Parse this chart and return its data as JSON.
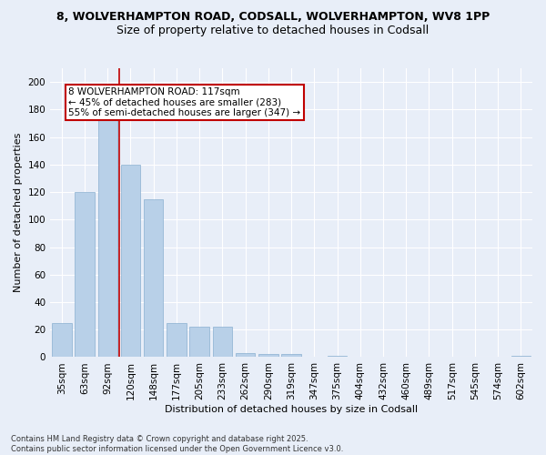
{
  "title_line1": "8, WOLVERHAMPTON ROAD, CODSALL, WOLVERHAMPTON, WV8 1PP",
  "title_line2": "Size of property relative to detached houses in Codsall",
  "xlabel": "Distribution of detached houses by size in Codsall",
  "ylabel": "Number of detached properties",
  "categories": [
    "35sqm",
    "63sqm",
    "92sqm",
    "120sqm",
    "148sqm",
    "177sqm",
    "205sqm",
    "233sqm",
    "262sqm",
    "290sqm",
    "319sqm",
    "347sqm",
    "375sqm",
    "404sqm",
    "432sqm",
    "460sqm",
    "489sqm",
    "517sqm",
    "545sqm",
    "574sqm",
    "602sqm"
  ],
  "values": [
    25,
    120,
    183,
    140,
    115,
    25,
    22,
    22,
    3,
    2,
    2,
    0,
    1,
    0,
    0,
    0,
    0,
    0,
    0,
    0,
    1
  ],
  "bar_color": "#b8d0e8",
  "bar_edge_color": "#8ab0d0",
  "vline_x": 2.5,
  "vline_color": "#c00000",
  "annotation_text": "8 WOLVERHAMPTON ROAD: 117sqm\n← 45% of detached houses are smaller (283)\n55% of semi-detached houses are larger (347) →",
  "annotation_box_color": "#c00000",
  "ylim": [
    0,
    210
  ],
  "yticks": [
    0,
    20,
    40,
    60,
    80,
    100,
    120,
    140,
    160,
    180,
    200
  ],
  "footer_line1": "Contains HM Land Registry data © Crown copyright and database right 2025.",
  "footer_line2": "Contains public sector information licensed under the Open Government Licence v3.0.",
  "bg_color": "#e8eef8",
  "grid_color": "#ffffff",
  "title1_fontsize": 9,
  "title2_fontsize": 9,
  "axis_label_fontsize": 8,
  "tick_fontsize": 7.5,
  "footer_fontsize": 6,
  "annot_fontsize": 7.5
}
